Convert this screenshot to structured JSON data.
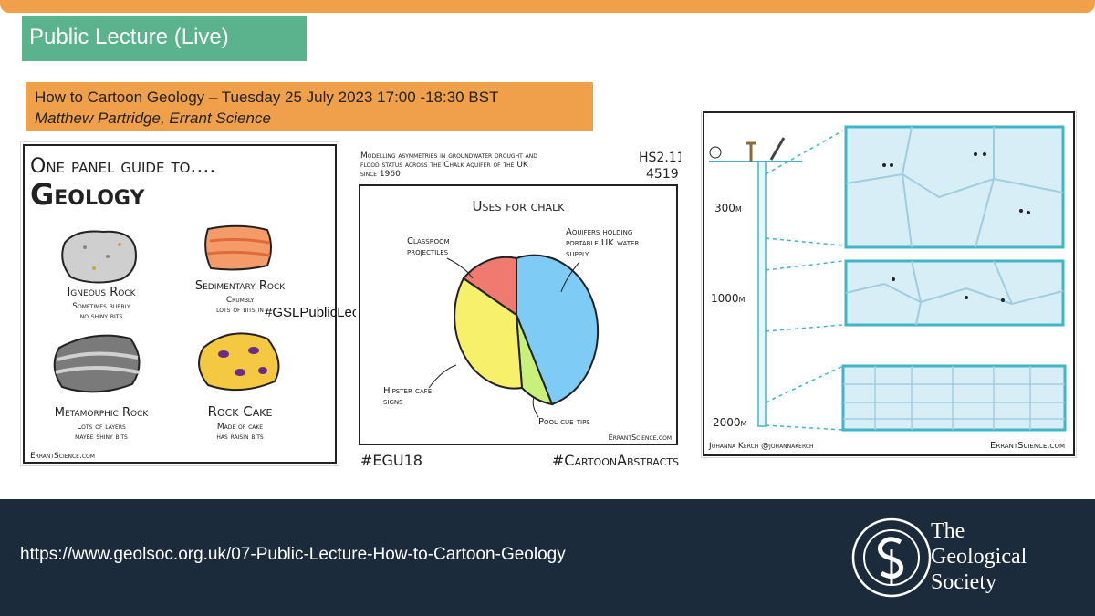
{
  "header": {
    "tag": "Public Lecture (Live)",
    "title_line": "How to Cartoon Geology – Tuesday 25 July 2023 17:00 -18:30 BST",
    "speaker_line": "Matthew Partridge, Errant Science"
  },
  "hashtag_overlay": "#GSLPublicLecture",
  "panel1": {
    "heading_top": "One panel guide to....",
    "heading_big": "Geology",
    "rocks": [
      {
        "name": "Igneous Rock",
        "line1": "Sometimes bubbly",
        "line2": "no shiny bits",
        "color": "#cfcfcf"
      },
      {
        "name": "Sedimentary Rock",
        "line1": "Crumbly",
        "line2": "lots of bits in",
        "color": "#f59b6a"
      },
      {
        "name": "Metamorphic Rock",
        "line1": "Lots of layers",
        "line2": "maybe shiny bits",
        "color": "#7a7a7a"
      },
      {
        "name": "Rock Cake",
        "line1": "Made of cake",
        "line2": "has raisin bits",
        "color": "#f5c842"
      }
    ],
    "credit": "ErrantScience.com"
  },
  "panel2": {
    "caption": [
      "Modelling asymmetries in groundwater drought and",
      "flood status across the Chalk aquifer of the UK",
      "since 1960"
    ],
    "code1": "HS2.11",
    "code2": "4519",
    "chart_title": "Uses for chalk",
    "slices": [
      {
        "label": "Aquifers holding portable UK water supply",
        "lines": [
          "Aquifers holding",
          "portable UK water",
          "supply"
        ],
        "color": "#7ecbf5"
      },
      {
        "label": "Pool cue tips",
        "lines": [
          "Pool cue tips"
        ],
        "color": "#c8f07a"
      },
      {
        "label": "Hipster cafe signs",
        "lines": [
          "Hipster cafe",
          "signs"
        ],
        "color": "#f7f06a"
      },
      {
        "label": "Classroom projectiles",
        "lines": [
          "Classroom",
          "projectiles"
        ],
        "color": "#f07a70"
      }
    ],
    "credit": "ErrantScience.com",
    "tag_left": "#EGU18",
    "tag_right": "#CartoonAbstracts"
  },
  "panel3": {
    "depths": [
      "300m",
      "1000m",
      "2000m"
    ],
    "author": "Johanna Kerch @johannakerch",
    "credit": "ErrantScience.com"
  },
  "footer": {
    "url": "https://www.geolsoc.org.uk/07-Public-Lecture-How-to-Cartoon-Geology",
    "society_lines": [
      "The",
      "Geological",
      "Society"
    ]
  }
}
